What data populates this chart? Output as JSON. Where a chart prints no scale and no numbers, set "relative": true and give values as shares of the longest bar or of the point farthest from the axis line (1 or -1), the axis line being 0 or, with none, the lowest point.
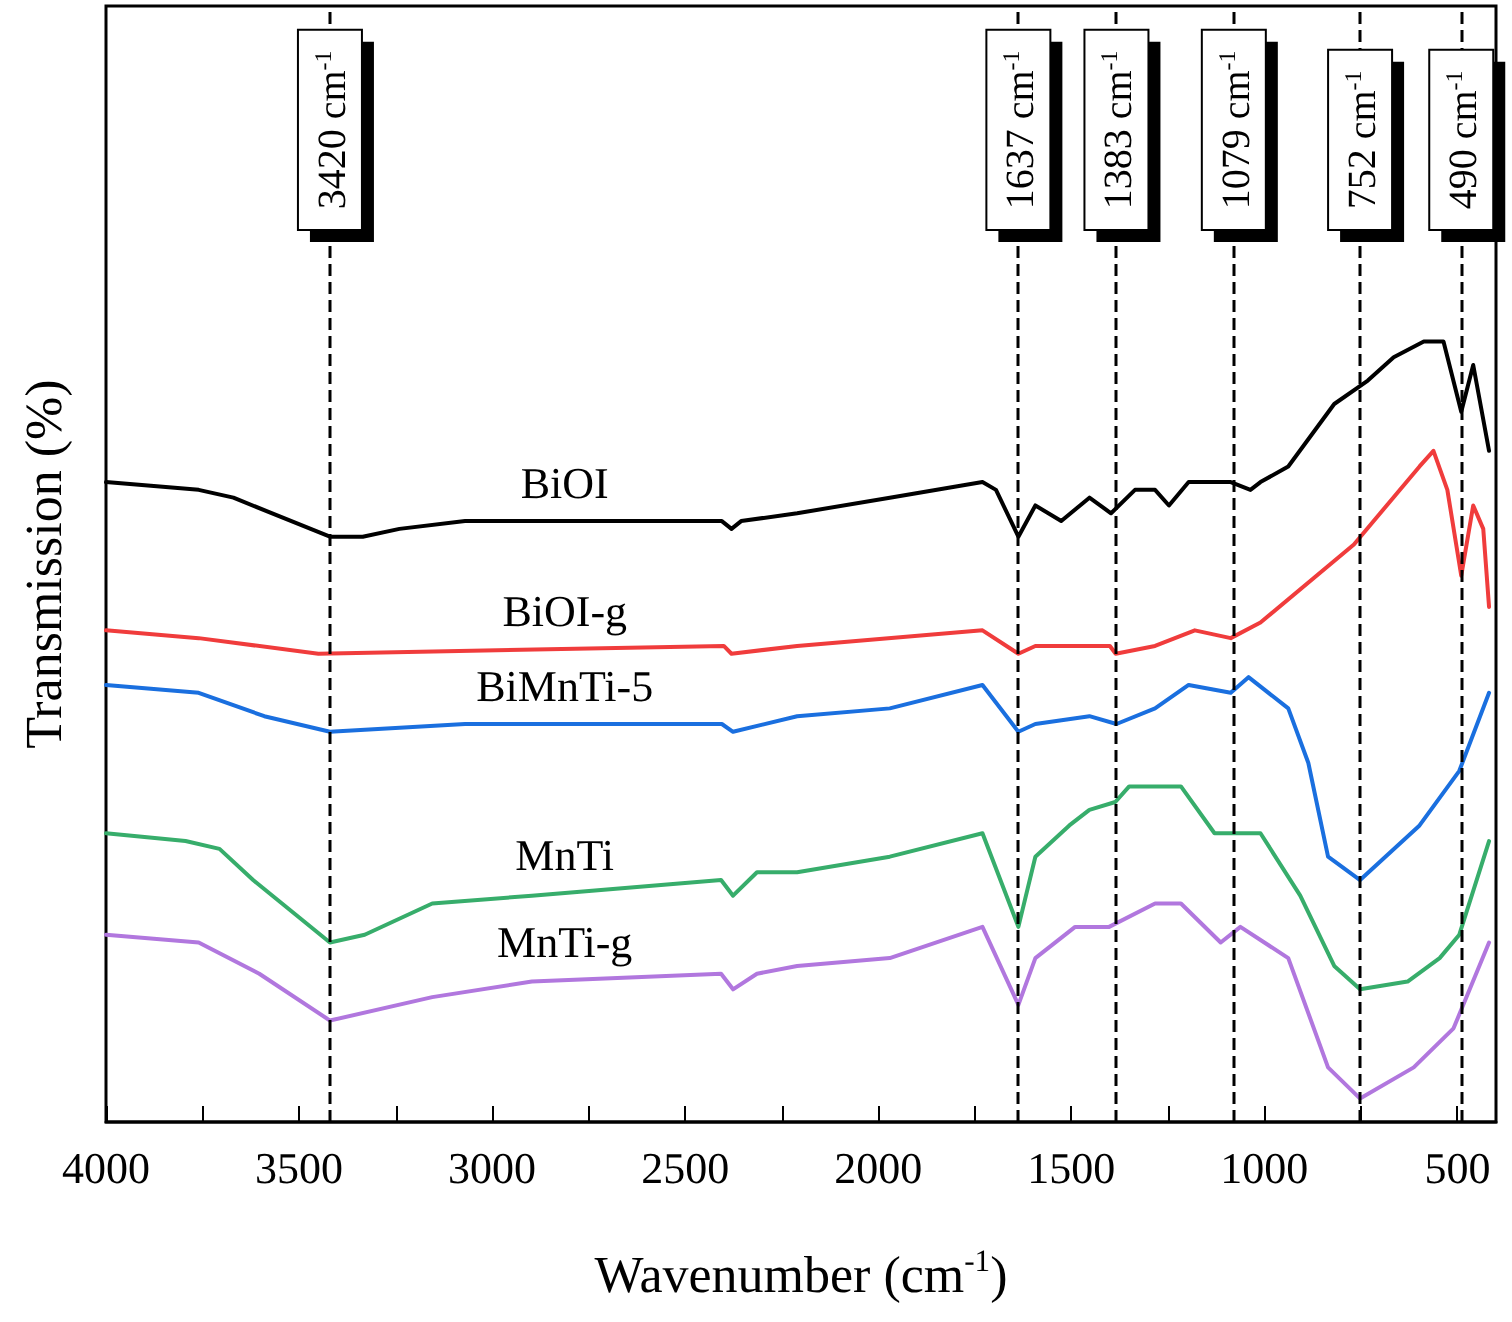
{
  "chart_data": {
    "type": "line",
    "xlabel": "Wavenumber (cm$^{-1}$)",
    "ylabel": "Transmission (%)",
    "relative": true,
    "marker": "none",
    "line_style": "solid",
    "xlim": [
      4000,
      400
    ],
    "xticks": [
      4000,
      {
        "value": 3750,
        "label": null
      },
      3500,
      {
        "value": 3250,
        "label": null
      },
      3000,
      {
        "value": 2750,
        "label": null
      },
      2500,
      {
        "value": 2250,
        "label": null
      },
      2000,
      {
        "value": 1750,
        "label": null
      },
      1500,
      {
        "value": 1250,
        "label": null
      },
      1000,
      {
        "value": 750,
        "label": null
      },
      500
    ],
    "ref_lines": [
      {
        "axis": "x",
        "value": 3420,
        "label": "3420 cm$^{-1}$",
        "color": "#000000",
        "line_style": "dashed"
      },
      {
        "axis": "x",
        "value": 1637,
        "label": "1637 cm$^{-1}$",
        "color": "#000000",
        "line_style": "dashed"
      },
      {
        "axis": "x",
        "value": 1383,
        "label": "1383 cm$^{-1}$",
        "color": "#000000",
        "line_style": "dashed"
      },
      {
        "axis": "x",
        "value": 1079,
        "label": "1079 cm$^{-1}$",
        "color": "#000000",
        "line_style": "dashed"
      },
      {
        "axis": "x",
        "value": 752,
        "label": "752 cm$^{-1}$",
        "color": "#000000",
        "line_style": "dashed"
      },
      {
        "axis": "x",
        "value": 490,
        "label": "490 cm$^{-1}$",
        "color": "#000000",
        "line_style": "dashed"
      }
    ],
    "series": [
      {
        "name": "BiOI",
        "color": "#000000",
        "x": [
          4000,
          3760,
          3670,
          3420,
          3335,
          3240,
          3070,
          2405,
          2380,
          2355,
          2210,
          1970,
          1730,
          1695,
          1637,
          1593,
          1526,
          1453,
          1397,
          1335,
          1283,
          1247,
          1196,
          1087,
          1036,
          1010,
          938,
          819,
          732,
          665,
          587,
          536,
          490,
          459,
          418
        ],
        "values": [
          0.82,
          0.81,
          0.8,
          0.75,
          0.75,
          0.76,
          0.77,
          0.77,
          0.76,
          0.77,
          0.78,
          0.8,
          0.82,
          0.81,
          0.75,
          0.79,
          0.77,
          0.8,
          0.78,
          0.81,
          0.81,
          0.79,
          0.82,
          0.82,
          0.81,
          0.82,
          0.84,
          0.92,
          0.95,
          0.98,
          1.0,
          1.0,
          0.91,
          0.97,
          0.86
        ]
      },
      {
        "name": "BiOI-g",
        "color": "#f03c3c",
        "x": [
          4000,
          3760,
          3450,
          2400,
          2380,
          2210,
          1730,
          1637,
          1593,
          1400,
          1385,
          1283,
          1180,
          1087,
          1010,
          768,
          598,
          562,
          526,
          490,
          459,
          433,
          418
        ],
        "values": [
          0.63,
          0.62,
          0.6,
          0.61,
          0.6,
          0.61,
          0.63,
          0.6,
          0.61,
          0.61,
          0.6,
          0.61,
          0.63,
          0.62,
          0.64,
          0.74,
          0.84,
          0.86,
          0.81,
          0.7,
          0.79,
          0.76,
          0.66
        ]
      },
      {
        "name": "BiMnTi-5",
        "color": "#1a6fdf",
        "x": [
          4000,
          3760,
          3590,
          3420,
          3070,
          2405,
          2376,
          2210,
          1970,
          1730,
          1637,
          1593,
          1453,
          1383,
          1283,
          1196,
          1087,
          1041,
          938,
          886,
          835,
          752,
          598,
          495,
          418
        ],
        "values": [
          0.56,
          0.55,
          0.52,
          0.5,
          0.51,
          0.51,
          0.5,
          0.52,
          0.53,
          0.56,
          0.5,
          0.51,
          0.52,
          0.51,
          0.53,
          0.56,
          0.55,
          0.57,
          0.53,
          0.46,
          0.34,
          0.31,
          0.38,
          0.45,
          0.55
        ]
      },
      {
        "name": "MnTi",
        "color": "#37ad6b",
        "x": [
          4000,
          3794,
          3706,
          3619,
          3420,
          3330,
          3155,
          2897,
          2407,
          2376,
          2314,
          2210,
          1970,
          1730,
          1637,
          1593,
          1505,
          1453,
          1386,
          1350,
          1216,
          1129,
          1010,
          907,
          819,
          752,
          629,
          546,
          495,
          418
        ],
        "values": [
          0.37,
          0.36,
          0.35,
          0.31,
          0.23,
          0.24,
          0.28,
          0.29,
          0.31,
          0.29,
          0.32,
          0.32,
          0.34,
          0.37,
          0.25,
          0.34,
          0.38,
          0.4,
          0.41,
          0.43,
          0.43,
          0.37,
          0.37,
          0.29,
          0.2,
          0.17,
          0.18,
          0.21,
          0.24,
          0.36
        ]
      },
      {
        "name": "MnTi-g",
        "color": "#b177de",
        "x": [
          4000,
          3760,
          3603,
          3420,
          3155,
          2897,
          2407,
          2376,
          2314,
          2210,
          1970,
          1730,
          1637,
          1593,
          1490,
          1402,
          1283,
          1216,
          1113,
          1062,
          938,
          835,
          752,
          613,
          510,
          418
        ],
        "values": [
          0.24,
          0.23,
          0.19,
          0.13,
          0.16,
          0.18,
          0.19,
          0.17,
          0.19,
          0.2,
          0.21,
          0.25,
          0.15,
          0.21,
          0.25,
          0.25,
          0.28,
          0.28,
          0.23,
          0.25,
          0.21,
          0.07,
          0.03,
          0.07,
          0.12,
          0.23
        ]
      }
    ]
  }
}
